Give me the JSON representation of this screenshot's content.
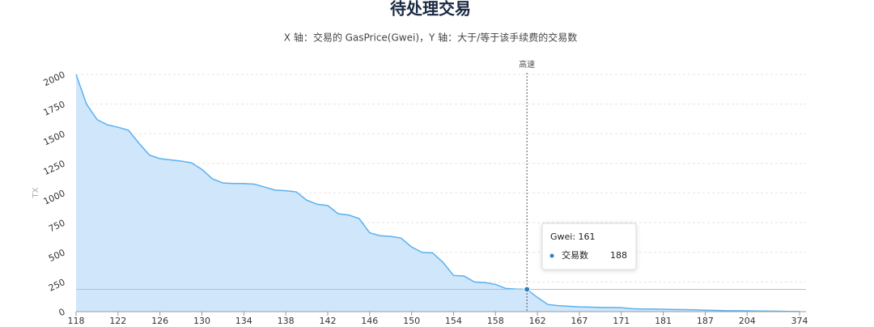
{
  "chart_data": {
    "type": "area",
    "title": "待处理交易",
    "subtitle": "X 轴：交易的 GasPrice(Gwei)，Y 轴：大于/等于该手续费的交易数",
    "y_label": "TX",
    "categories": [
      "118",
      null,
      null,
      null,
      "122",
      null,
      null,
      null,
      "126",
      null,
      null,
      null,
      "130",
      null,
      null,
      null,
      "134",
      null,
      null,
      null,
      "138",
      null,
      null,
      null,
      "142",
      null,
      null,
      null,
      "146",
      null,
      null,
      null,
      "150",
      null,
      null,
      null,
      "154",
      null,
      null,
      null,
      "158",
      null,
      null,
      null,
      "162",
      null,
      null,
      null,
      "167",
      null,
      null,
      null,
      "171",
      null,
      null,
      null,
      "181",
      null,
      null,
      null,
      "187",
      null,
      null,
      null,
      "204",
      null,
      null,
      null,
      null,
      "374"
    ],
    "series": [
      {
        "name": "交易数",
        "color": "#5ab1ef",
        "fill": "#cfe6fb",
        "values": [
          2000,
          1750,
          1620,
          1575,
          1555,
          1530,
          1420,
          1320,
          1290,
          1280,
          1270,
          1255,
          1200,
          1120,
          1085,
          1080,
          1080,
          1075,
          1050,
          1025,
          1020,
          1010,
          940,
          905,
          895,
          825,
          815,
          785,
          665,
          640,
          635,
          620,
          545,
          500,
          495,
          415,
          305,
          300,
          250,
          245,
          230,
          195,
          190,
          188,
          120,
          60,
          50,
          45,
          40,
          38,
          35,
          35,
          33,
          25,
          22,
          22,
          20,
          18,
          17,
          15,
          12,
          10,
          8,
          8,
          7,
          5,
          4,
          3,
          2,
          1
        ]
      }
    ],
    "ylim": [
      0,
      2000
    ],
    "yticks": [
      0,
      250,
      500,
      750,
      1000,
      1250,
      1500,
      1750,
      2000
    ],
    "grid": true,
    "mark_line": {
      "label": "高速"
    },
    "tooltip": {
      "title": "Gwei: 161",
      "series": "交易数",
      "value": 188
    }
  }
}
